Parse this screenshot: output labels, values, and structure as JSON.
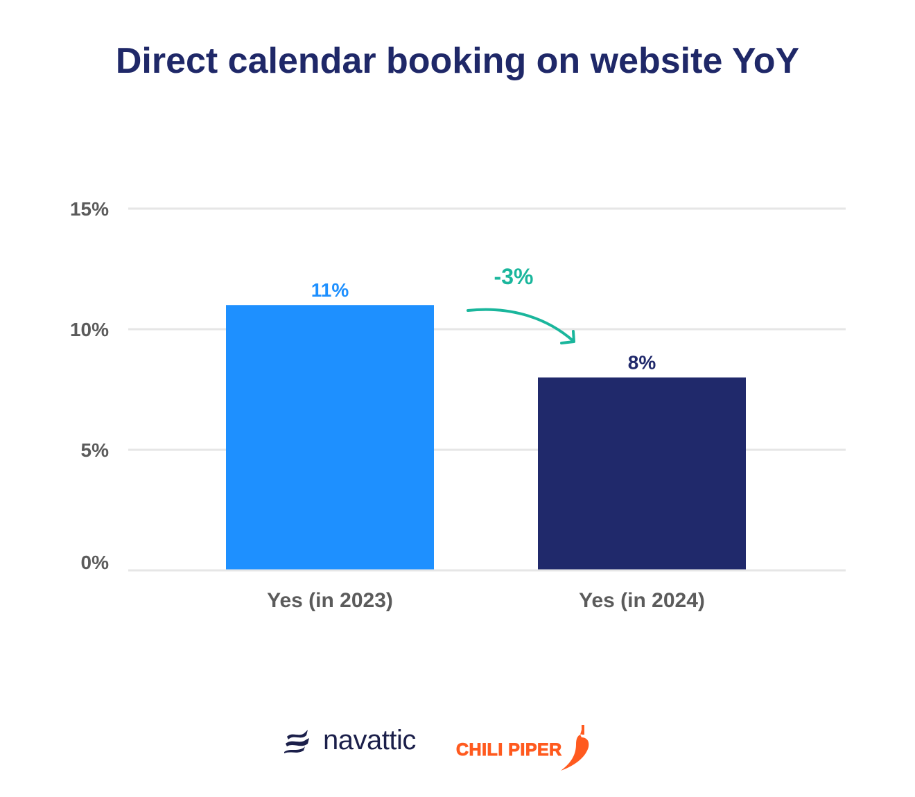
{
  "chart_data": {
    "type": "bar",
    "title": "Direct calendar booking on website YoY",
    "categories": [
      "Yes (in 2023)",
      "Yes (in 2024)"
    ],
    "values": [
      11,
      8
    ],
    "data_labels": [
      "11%",
      "8%"
    ],
    "bar_colors": [
      "#1e90ff",
      "#20296b"
    ],
    "ylim": [
      0,
      15
    ],
    "yticks": [
      0,
      5,
      10,
      15
    ],
    "ytick_labels": [
      "0%",
      "5%",
      "10%",
      "15%"
    ],
    "grid": true,
    "annotation": {
      "text": "-3%",
      "color": "#1ab69c"
    }
  },
  "logos": {
    "navattic": "navattic",
    "chili_piper": "CHILI PIPER"
  }
}
